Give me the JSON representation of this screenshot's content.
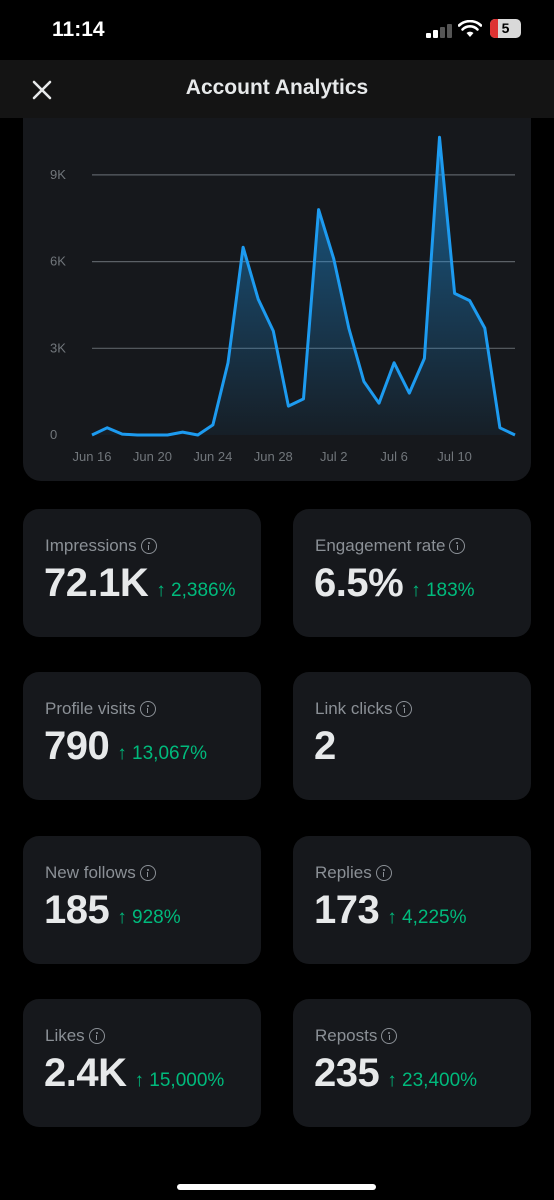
{
  "status_bar": {
    "time": "11:14",
    "battery": "5"
  },
  "header": {
    "title": "Account Analytics"
  },
  "chart_data": {
    "type": "area",
    "y_ticks": [
      "0",
      "3K",
      "6K",
      "9K"
    ],
    "x_ticks": [
      "Jun 16",
      "Jun 20",
      "Jun 24",
      "Jun 28",
      "Jul 2",
      "Jul 6",
      "Jul 10"
    ],
    "ylim": [
      0,
      10000
    ],
    "x": [
      "Jun 16",
      "Jun 17",
      "Jun 18",
      "Jun 19",
      "Jun 20",
      "Jun 21",
      "Jun 22",
      "Jun 23",
      "Jun 24",
      "Jun 25",
      "Jun 26",
      "Jun 27",
      "Jun 28",
      "Jun 29",
      "Jun 30",
      "Jul 1",
      "Jul 2",
      "Jul 3",
      "Jul 4",
      "Jul 5",
      "Jul 6",
      "Jul 7",
      "Jul 8",
      "Jul 9",
      "Jul 10",
      "Jul 11",
      "Jul 12",
      "Jul 13",
      "Jul 14"
    ],
    "values": [
      0,
      250,
      30,
      0,
      0,
      0,
      100,
      0,
      350,
      2500,
      6500,
      4700,
      3600,
      1000,
      1250,
      7800,
      6100,
      3700,
      1850,
      1100,
      2500,
      1450,
      2650,
      10300,
      4900,
      4650,
      3700,
      250,
      0
    ],
    "colors": {
      "line": "#1d9bf0",
      "fill_top": "#1d9bf0",
      "grid": "#5b6066"
    }
  },
  "stats": [
    {
      "label": "Impressions",
      "value": "72.1K",
      "change": "↑ 2,386%"
    },
    {
      "label": "Engagement rate",
      "value": "6.5%",
      "change": "↑ 183%"
    },
    {
      "label": "Profile visits",
      "value": "790",
      "change": "↑ 13,067%"
    },
    {
      "label": "Link clicks",
      "value": "2",
      "change": ""
    },
    {
      "label": "New follows",
      "value": "185",
      "change": "↑ 928%"
    },
    {
      "label": "Replies",
      "value": "173",
      "change": "↑ 4,225%"
    },
    {
      "label": "Likes",
      "value": "2.4K",
      "change": "↑ 15,000%"
    },
    {
      "label": "Reposts",
      "value": "235",
      "change": "↑ 23,400%"
    }
  ],
  "colors": {
    "positive": "#00ba7c",
    "background": "#000000",
    "card": "#16181c"
  }
}
